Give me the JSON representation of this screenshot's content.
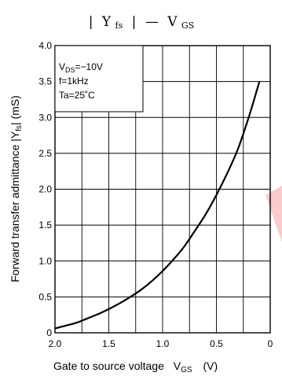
{
  "chart_data": {
    "type": "line",
    "title_text": {
      "bar1": "|",
      "y": "Y",
      "y_sub": "fs",
      "bar2": "|",
      "dash": "—",
      "v": "V",
      "v_sub": "GS"
    },
    "xlabel": {
      "text": "Gate to source voltage",
      "var": "V",
      "var_sub": "GS",
      "unit": "(V)"
    },
    "ylabel": {
      "pre": "Forward transfer admittance  |Y",
      "sub": "fs",
      "post": "|  (mS)"
    },
    "x_ticks": [
      "2.0",
      "1.5",
      "1.0",
      "0.5",
      "0"
    ],
    "y_ticks": [
      "0",
      "0.5",
      "1.0",
      "1.5",
      "2.0",
      "2.5",
      "3.0",
      "3.5",
      "4.0"
    ],
    "xlim": [
      2.0,
      0
    ],
    "ylim": [
      0,
      4.0
    ],
    "grid": true,
    "conditions": [
      {
        "pre": "V",
        "sub": "DS",
        "post": "=−10V"
      },
      {
        "pre": "f=1kHz",
        "sub": "",
        "post": ""
      },
      {
        "pre": "Ta=25˚C",
        "sub": "",
        "post": ""
      }
    ],
    "series": [
      {
        "x": [
          2.0,
          1.9,
          1.8,
          1.7,
          1.6,
          1.5,
          1.4,
          1.3,
          1.2,
          1.1,
          1.0,
          0.9,
          0.8,
          0.7,
          0.6,
          0.5,
          0.4,
          0.3,
          0.2,
          0.1
        ],
        "y": [
          0.06,
          0.1,
          0.14,
          0.2,
          0.26,
          0.33,
          0.41,
          0.5,
          0.6,
          0.72,
          0.86,
          1.02,
          1.2,
          1.42,
          1.65,
          1.92,
          2.22,
          2.56,
          3.0,
          3.5
        ]
      }
    ],
    "colors": {
      "line": "#000000",
      "grid": "#000000",
      "watermark": "#f6a3a3"
    }
  }
}
